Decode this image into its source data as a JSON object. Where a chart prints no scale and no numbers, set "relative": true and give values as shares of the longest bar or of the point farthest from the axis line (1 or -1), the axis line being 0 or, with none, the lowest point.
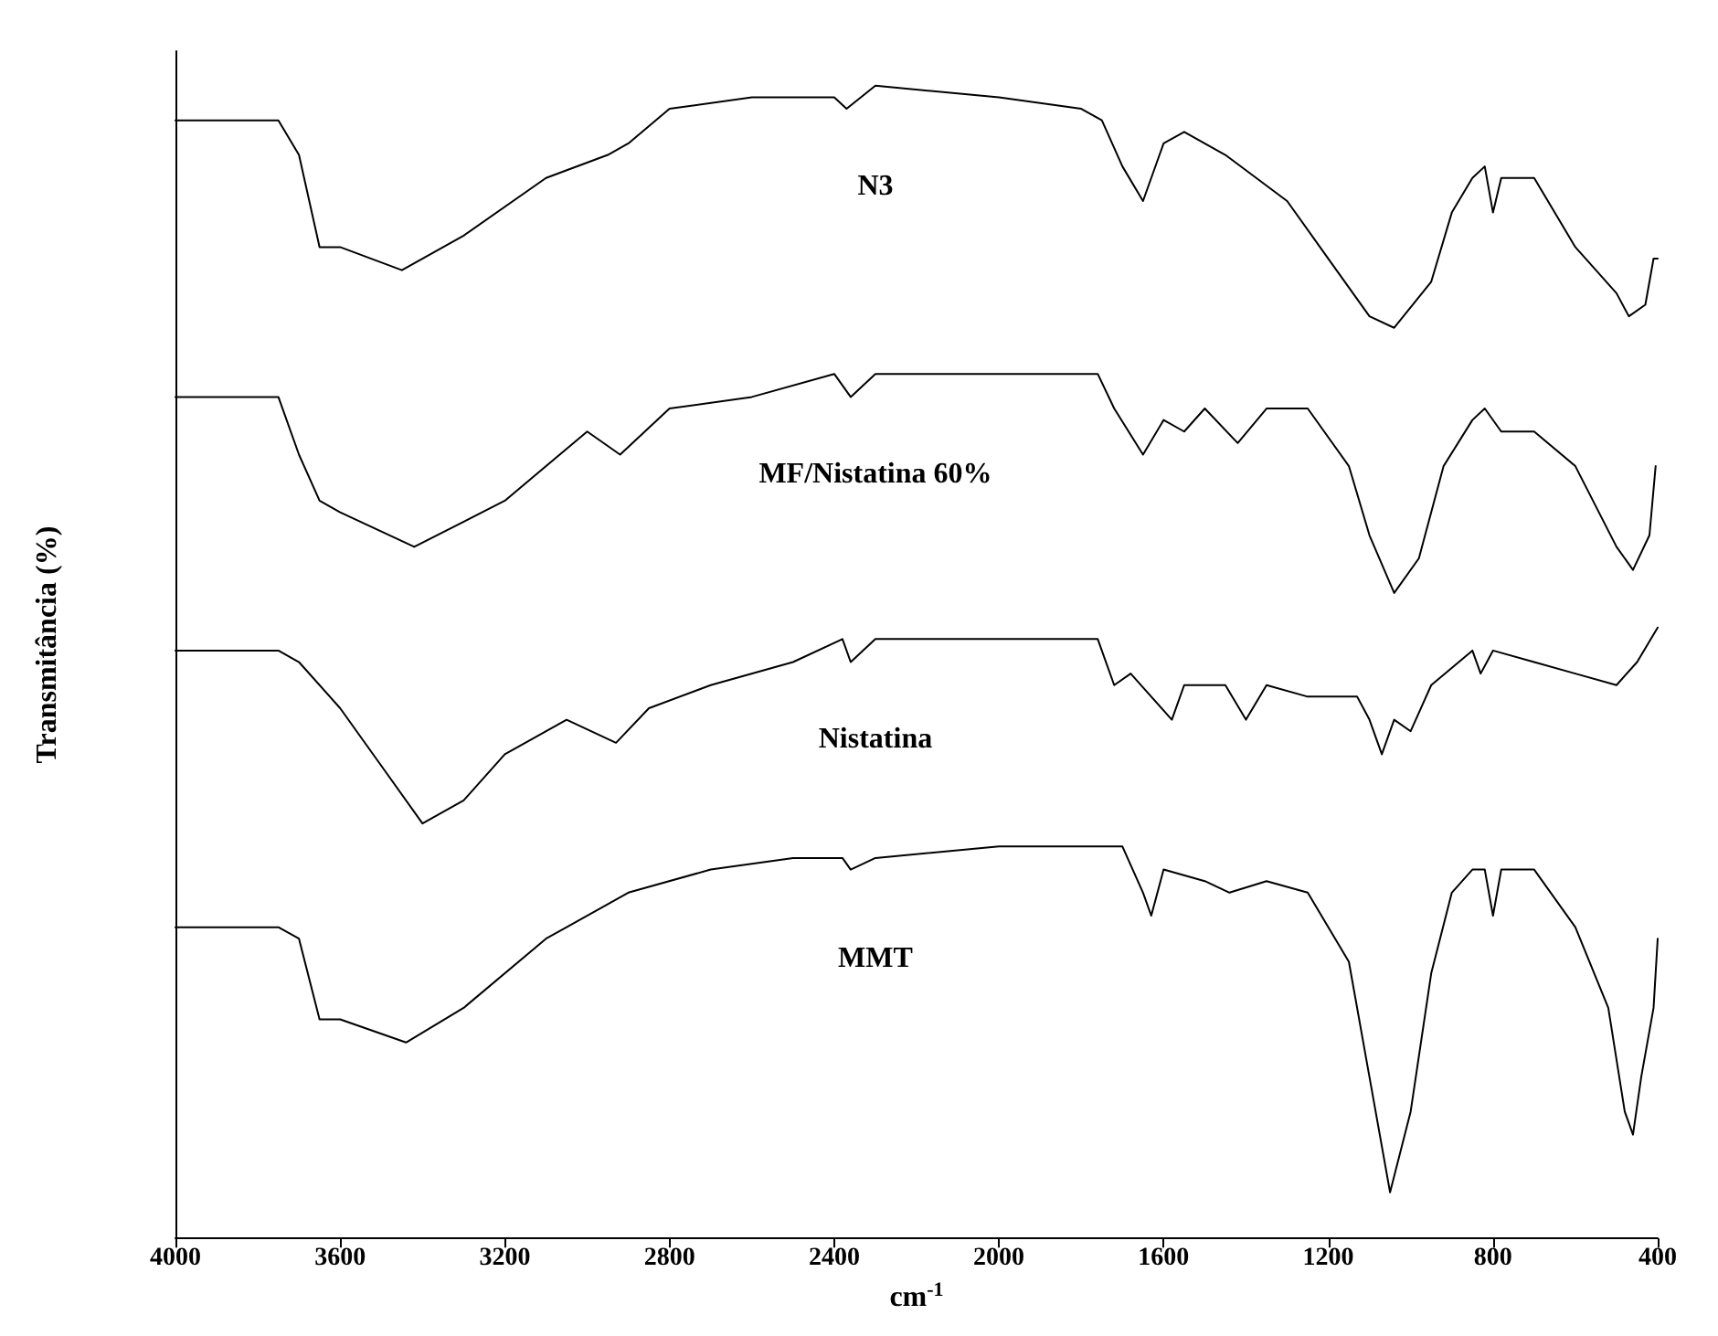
{
  "chart_data": {
    "type": "line",
    "relative": true,
    "xlabel": "cm$^{-1}$",
    "ylabel": "Transmitância (%)",
    "xlim": [
      4000,
      400
    ],
    "xticks": [
      4000,
      3600,
      3200,
      2800,
      2400,
      2000,
      1600,
      1200,
      800,
      400
    ],
    "marker": "none",
    "line_style": "solid",
    "series": [
      {
        "name": "N3",
        "color": "#000000",
        "x": [
          4000,
          3750,
          3700,
          3650,
          3600,
          3450,
          3300,
          3100,
          2950,
          2900,
          2800,
          2600,
          2400,
          2370,
          2300,
          2000,
          1800,
          1750,
          1700,
          1650,
          1600,
          1550,
          1450,
          1300,
          1200,
          1100,
          1040,
          950,
          900,
          850,
          820,
          800,
          780,
          700,
          600,
          500,
          470,
          430,
          410,
          400
        ],
        "values": [
          0.97,
          0.97,
          0.94,
          0.86,
          0.86,
          0.84,
          0.87,
          0.92,
          0.94,
          0.95,
          0.98,
          0.99,
          0.99,
          0.98,
          1.0,
          0.99,
          0.98,
          0.97,
          0.93,
          0.9,
          0.95,
          0.96,
          0.94,
          0.9,
          0.85,
          0.8,
          0.79,
          0.83,
          0.89,
          0.92,
          0.93,
          0.89,
          0.92,
          0.92,
          0.86,
          0.82,
          0.8,
          0.81,
          0.85,
          0.85
        ]
      },
      {
        "name": "MF/Nistatina 60%",
        "color": "#000000",
        "x": [
          4000,
          3750,
          3700,
          3650,
          3600,
          3420,
          3200,
          3000,
          2920,
          2800,
          2600,
          2400,
          2360,
          2300,
          2000,
          1760,
          1720,
          1650,
          1600,
          1550,
          1500,
          1420,
          1350,
          1250,
          1150,
          1100,
          1040,
          980,
          920,
          850,
          820,
          780,
          700,
          600,
          500,
          460,
          420,
          405
        ],
        "values": [
          0.73,
          0.73,
          0.68,
          0.64,
          0.63,
          0.6,
          0.64,
          0.7,
          0.68,
          0.72,
          0.73,
          0.75,
          0.73,
          0.75,
          0.75,
          0.75,
          0.72,
          0.68,
          0.71,
          0.7,
          0.72,
          0.69,
          0.72,
          0.72,
          0.67,
          0.61,
          0.56,
          0.59,
          0.67,
          0.71,
          0.72,
          0.7,
          0.7,
          0.67,
          0.6,
          0.58,
          0.61,
          0.67
        ]
      },
      {
        "name": "Nistatina",
        "color": "#000000",
        "x": [
          4000,
          3750,
          3700,
          3600,
          3500,
          3400,
          3300,
          3200,
          3050,
          2930,
          2850,
          2700,
          2500,
          2380,
          2360,
          2300,
          2000,
          1760,
          1720,
          1680,
          1580,
          1550,
          1450,
          1400,
          1350,
          1250,
          1200,
          1130,
          1100,
          1070,
          1040,
          1000,
          950,
          850,
          830,
          800,
          700,
          600,
          500,
          450,
          400
        ],
        "values": [
          0.51,
          0.51,
          0.5,
          0.46,
          0.41,
          0.36,
          0.38,
          0.42,
          0.45,
          0.43,
          0.46,
          0.48,
          0.5,
          0.52,
          0.5,
          0.52,
          0.52,
          0.52,
          0.48,
          0.49,
          0.45,
          0.48,
          0.48,
          0.45,
          0.48,
          0.47,
          0.47,
          0.47,
          0.45,
          0.42,
          0.45,
          0.44,
          0.48,
          0.51,
          0.49,
          0.51,
          0.5,
          0.49,
          0.48,
          0.5,
          0.53
        ]
      },
      {
        "name": "MMT",
        "color": "#000000",
        "x": [
          4000,
          3750,
          3700,
          3650,
          3600,
          3440,
          3300,
          3100,
          2900,
          2700,
          2500,
          2380,
          2360,
          2300,
          2000,
          1700,
          1650,
          1630,
          1600,
          1500,
          1440,
          1350,
          1250,
          1150,
          1100,
          1050,
          1000,
          950,
          900,
          850,
          820,
          800,
          780,
          700,
          600,
          520,
          480,
          460,
          440,
          410,
          400
        ],
        "values": [
          0.27,
          0.27,
          0.26,
          0.19,
          0.19,
          0.17,
          0.2,
          0.26,
          0.3,
          0.32,
          0.33,
          0.33,
          0.32,
          0.33,
          0.34,
          0.34,
          0.3,
          0.28,
          0.32,
          0.31,
          0.3,
          0.31,
          0.3,
          0.24,
          0.14,
          0.04,
          0.11,
          0.23,
          0.3,
          0.32,
          0.32,
          0.28,
          0.32,
          0.32,
          0.27,
          0.2,
          0.11,
          0.09,
          0.14,
          0.2,
          0.26
        ]
      }
    ]
  }
}
